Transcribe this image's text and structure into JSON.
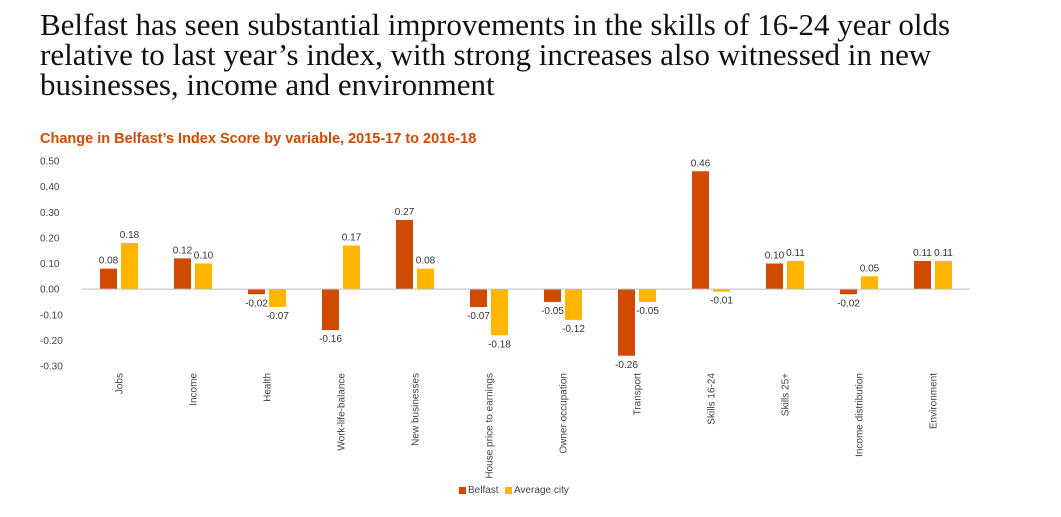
{
  "headline": "Belfast has seen substantial improvements in the skills of 16-24 year olds relative to last year’s index, with strong increases also witnessed in new businesses, income and environment",
  "colors": {
    "belfast": "#d04a02",
    "average": "#ffb600",
    "title": "#d04a02",
    "zero_line": "#bfbfbf"
  },
  "chart_data": {
    "type": "bar",
    "title": "Change in Belfast’s Index Score by variable, 2015-17 to 2016-18",
    "xlabel": "",
    "ylabel": "",
    "ylim": [
      -0.3,
      0.5
    ],
    "yticks": [
      "0.50",
      "0.40",
      "0.30",
      "0.20",
      "0.10",
      "0.00",
      "-0.10",
      "-0.20",
      "-0.30"
    ],
    "ytick_values": [
      0.5,
      0.4,
      0.3,
      0.2,
      0.1,
      0.0,
      -0.1,
      -0.2,
      -0.3
    ],
    "categories": [
      "Jobs",
      "Income",
      "Health",
      "Work-life-balance",
      "New businesses",
      "House price to earnings",
      "Owner occupation",
      "Transport",
      "Skills 16-24",
      "Skills 25+",
      "Income distribution",
      "Environment"
    ],
    "series": [
      {
        "name": "Belfast",
        "values": [
          0.08,
          0.12,
          -0.02,
          -0.16,
          0.27,
          -0.07,
          -0.05,
          -0.26,
          0.46,
          0.1,
          -0.02,
          0.11
        ],
        "labels": [
          "0.08",
          "0.12",
          "-0.02",
          "-0.16",
          "0.27",
          "-0.07",
          "-0.05",
          "-0.26",
          "0.46",
          "0.10",
          "-0.02",
          "0.11"
        ]
      },
      {
        "name": "Average city",
        "values": [
          0.18,
          0.1,
          -0.07,
          0.17,
          0.08,
          -0.18,
          -0.12,
          -0.05,
          -0.01,
          0.11,
          0.05,
          0.11
        ],
        "labels": [
          "0.18",
          "0.10",
          "-0.07",
          "0.17",
          "0.08",
          "-0.18",
          "-0.12",
          "-0.05",
          "-0.01",
          "0.11",
          "0.05",
          "0.11"
        ]
      }
    ],
    "legend_position": "bottom-center",
    "grid": false
  }
}
